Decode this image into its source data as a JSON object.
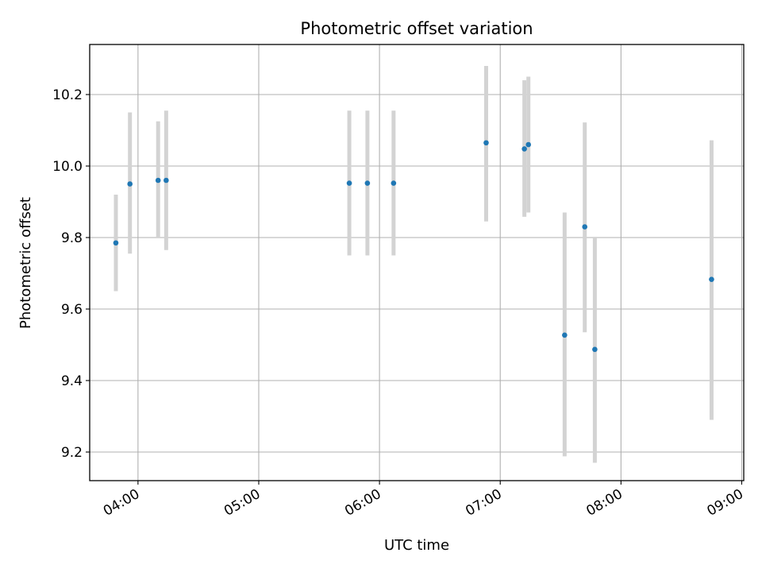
{
  "chart_data": {
    "type": "scatter",
    "title": "Photometric offset variation",
    "xlabel": "UTC time",
    "ylabel": "Photometric offset",
    "grid": true,
    "x_unit": "UTC time (HH:MM)",
    "xlim": [
      "03:36",
      "09:01"
    ],
    "ylim": [
      9.12,
      10.34
    ],
    "x_ticks": [
      "04:00",
      "05:00",
      "06:00",
      "07:00",
      "08:00",
      "09:00"
    ],
    "y_ticks": [
      9.2,
      9.4,
      9.6,
      9.8,
      10.0,
      10.2
    ],
    "y_tick_labels": [
      "9.2",
      "9.4",
      "9.6",
      "9.8",
      "10.0",
      "10.2"
    ],
    "colors": {
      "points": "#1f77b4",
      "errorbars": "#d3d3d3",
      "grid": "#b0b0b0"
    },
    "points": [
      {
        "x": "03:49",
        "y": 9.785,
        "err_low": 9.65,
        "err_high": 9.92
      },
      {
        "x": "03:56",
        "y": 9.95,
        "err_low": 9.755,
        "err_high": 10.15
      },
      {
        "x": "04:10",
        "y": 9.96,
        "err_low": 9.8,
        "err_high": 10.125
      },
      {
        "x": "04:14",
        "y": 9.96,
        "err_low": 9.765,
        "err_high": 10.155
      },
      {
        "x": "05:45",
        "y": 9.952,
        "err_low": 9.75,
        "err_high": 10.155
      },
      {
        "x": "05:54",
        "y": 9.952,
        "err_low": 9.75,
        "err_high": 10.155
      },
      {
        "x": "06:07",
        "y": 9.952,
        "err_low": 9.75,
        "err_high": 10.155
      },
      {
        "x": "06:53",
        "y": 10.065,
        "err_low": 9.845,
        "err_high": 10.28
      },
      {
        "x": "07:12",
        "y": 10.048,
        "err_low": 9.858,
        "err_high": 10.24
      },
      {
        "x": "07:14",
        "y": 10.06,
        "err_low": 9.87,
        "err_high": 10.25
      },
      {
        "x": "07:32",
        "y": 9.527,
        "err_low": 9.188,
        "err_high": 9.87
      },
      {
        "x": "07:42",
        "y": 9.83,
        "err_low": 9.535,
        "err_high": 10.122
      },
      {
        "x": "07:47",
        "y": 9.487,
        "err_low": 9.17,
        "err_high": 9.8
      },
      {
        "x": "08:45",
        "y": 9.683,
        "err_low": 9.29,
        "err_high": 10.072
      }
    ]
  }
}
